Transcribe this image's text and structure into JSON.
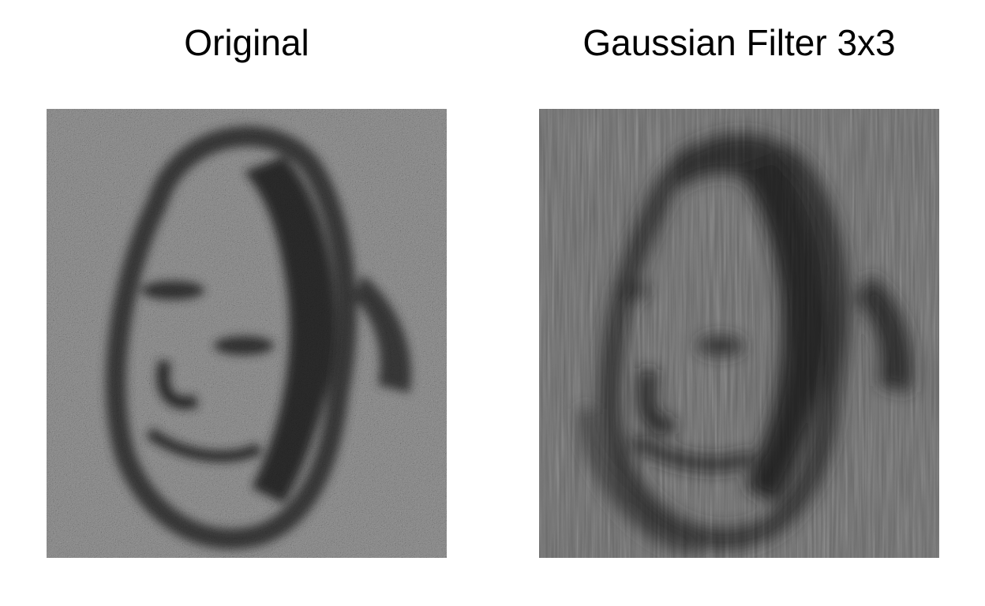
{
  "panels": [
    {
      "title": "Original",
      "image_style": "noisy grayscale photo of a face (salt-and-pepper noise)"
    },
    {
      "title": "Gaussian Filter 3x3",
      "image_style": "smoothed grayscale photo of the same face with vertical streaks"
    }
  ],
  "colors": {
    "background": "#ffffff",
    "text": "#000000",
    "dark_tone": "#1a1a1a",
    "mid_tone": "#6e6e6e",
    "light_tone": "#d8d8d8"
  },
  "icons": {
    "left_image": "noisy-face-image",
    "right_image": "filtered-face-image"
  }
}
